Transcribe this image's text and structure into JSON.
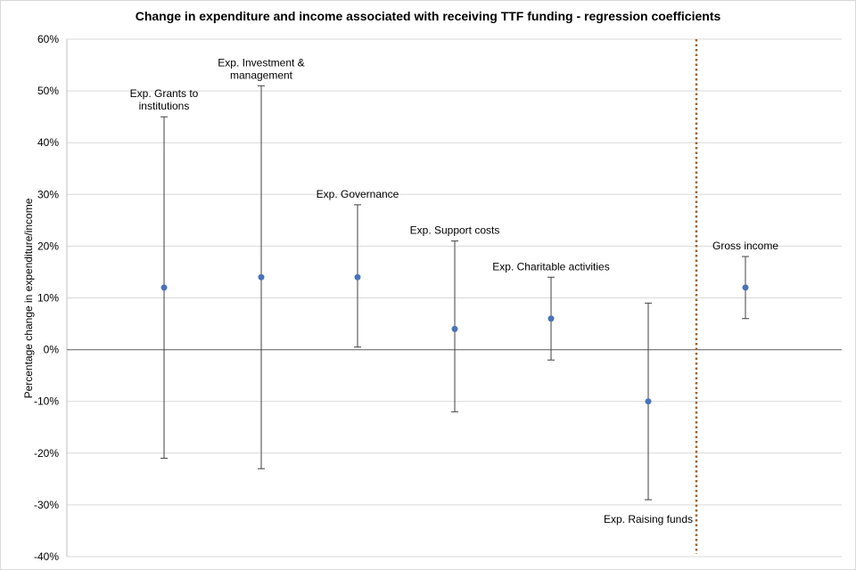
{
  "chart_data": {
    "type": "scatter",
    "title": "Change in expenditure and income associated with receiving TTF funding - regression coefficients",
    "xlabel": "",
    "ylabel": "Percentage  change  in expenditure/income",
    "ylim": [
      -40,
      60
    ],
    "yticks": [
      60,
      50,
      40,
      30,
      20,
      10,
      0,
      -10,
      -20,
      -30,
      -40
    ],
    "ytick_labels": [
      "60%",
      "50%",
      "40%",
      "30%",
      "20%",
      "10%",
      "0%",
      "-10%",
      "-20%",
      "-30%",
      "-40%"
    ],
    "grid": true,
    "point_color": "#4a72b8",
    "error_bar_color": "#404040",
    "divider_color": "#a0632a",
    "points": [
      {
        "label": [
          "Exp. Grants to",
          "institutions"
        ],
        "y": 12,
        "low": -21,
        "high": 45,
        "label_pos": "above"
      },
      {
        "label": [
          "Exp. Investment &",
          "management"
        ],
        "y": 14,
        "low": -23,
        "high": 51,
        "label_pos": "above"
      },
      {
        "label": [
          "Exp. Governance"
        ],
        "y": 14,
        "low": 0.5,
        "high": 28,
        "label_pos": "above"
      },
      {
        "label": [
          "Exp. Support costs"
        ],
        "y": 4,
        "low": -12,
        "high": 21,
        "label_pos": "above"
      },
      {
        "label": [
          "Exp. Charitable activities"
        ],
        "y": 6,
        "low": -2,
        "high": 14,
        "label_pos": "above"
      },
      {
        "label": [
          "Exp. Raising funds"
        ],
        "y": -10,
        "low": -29,
        "high": 9,
        "label_pos": "below"
      },
      {
        "label": [
          "Gross income"
        ],
        "y": 12,
        "low": 6,
        "high": 18,
        "label_pos": "above"
      }
    ]
  }
}
